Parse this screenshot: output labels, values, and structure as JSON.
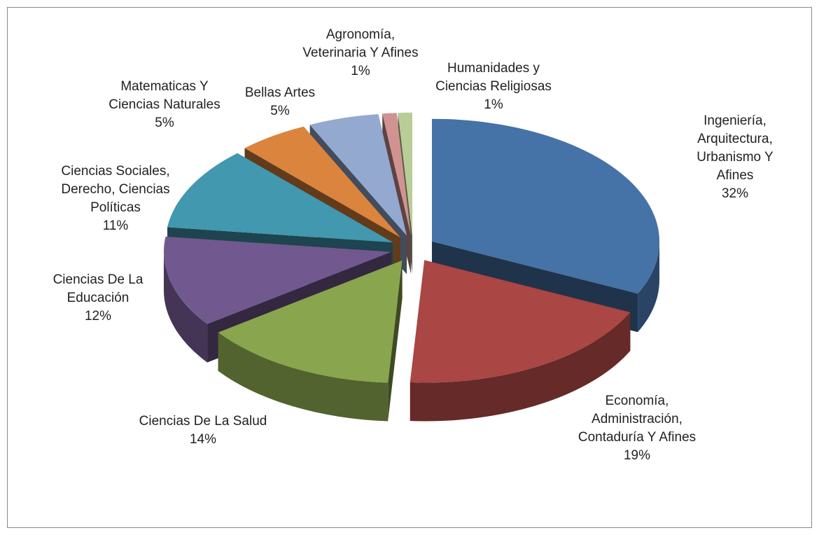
{
  "chart_data": {
    "type": "pie",
    "categories": [
      "Ingeniería,\nArquitectura,\nUrbanismo Y Afines",
      "Economía,\nAdministración,\nContaduría Y Afines",
      "Ciencias De La Salud",
      "Ciencias De La\nEducación",
      "Ciencias Sociales,\nDerecho, Ciencias\nPolíticas",
      "Matematicas Y\nCiencias Naturales",
      "Bellas Artes",
      "Agronomía,\nVeterinaria Y Afines",
      "Humanidades y\nCiencias Religiosas"
    ],
    "values": [
      32,
      19,
      14,
      12,
      11,
      5,
      5,
      1,
      1
    ],
    "value_labels": [
      "32%",
      "19%",
      "14%",
      "12%",
      "11%",
      "5%",
      "5%",
      "1%",
      "1%"
    ],
    "colors": [
      "#4572a7",
      "#aa4643",
      "#89a54e",
      "#71588f",
      "#4198af",
      "#db843d",
      "#93a9cf",
      "#d19392",
      "#b9cd96"
    ]
  }
}
